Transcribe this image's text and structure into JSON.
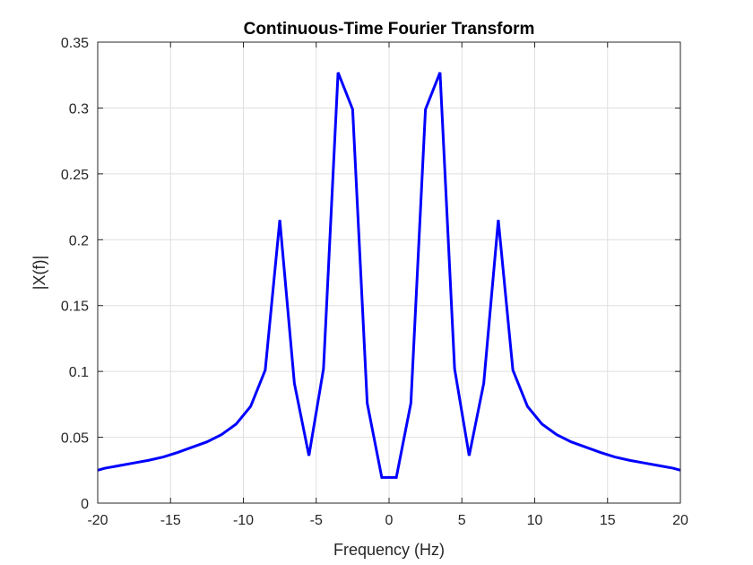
{
  "chart_data": {
    "type": "line",
    "title": "Continuous-Time Fourier Transform",
    "xlabel": "Frequency (Hz)",
    "ylabel": "|X(f)|",
    "xlim": [
      -20,
      20
    ],
    "ylim": [
      0,
      0.35
    ],
    "grid": true,
    "xticks": [
      -20,
      -15,
      -10,
      -5,
      0,
      5,
      10,
      15,
      20
    ],
    "xtick_labels": [
      "-20",
      "-15",
      "-10",
      "-5",
      "0",
      "5",
      "10",
      "15",
      "20"
    ],
    "yticks": [
      0,
      0.05,
      0.1,
      0.15,
      0.2,
      0.25,
      0.3,
      0.35
    ],
    "ytick_labels": [
      "0",
      "0.05",
      "0.1",
      "0.15",
      "0.2",
      "0.25",
      "0.3",
      "0.35"
    ],
    "series": [
      {
        "color": "#0000ff",
        "x": [
          -20,
          -19.5,
          -18.5,
          -17.5,
          -16.5,
          -15.5,
          -14.5,
          -13.5,
          -12.5,
          -11.5,
          -10.5,
          -9.5,
          -8.5,
          -7.5,
          -6.5,
          -5.5,
          -4.5,
          -3.5,
          -2.5,
          -1.5,
          -0.5,
          0.5,
          1.5,
          2.5,
          3.5,
          4.5,
          5.5,
          6.5,
          7.5,
          8.5,
          9.5,
          10.5,
          11.5,
          12.5,
          13.5,
          14.5,
          15.5,
          16.5,
          17.5,
          18.5,
          19.5,
          20
        ],
        "y": [
          0.025,
          0.0265,
          0.0285,
          0.0305,
          0.0325,
          0.035,
          0.0385,
          0.0425,
          0.0465,
          0.052,
          0.06,
          0.0735,
          0.101,
          0.215,
          0.091,
          0.036,
          0.102,
          0.327,
          0.299,
          0.076,
          0.0195,
          0.0195,
          0.076,
          0.299,
          0.327,
          0.102,
          0.036,
          0.091,
          0.215,
          0.101,
          0.0735,
          0.06,
          0.052,
          0.0465,
          0.0425,
          0.0385,
          0.035,
          0.0325,
          0.0305,
          0.0285,
          0.0265,
          0.025
        ]
      }
    ]
  }
}
